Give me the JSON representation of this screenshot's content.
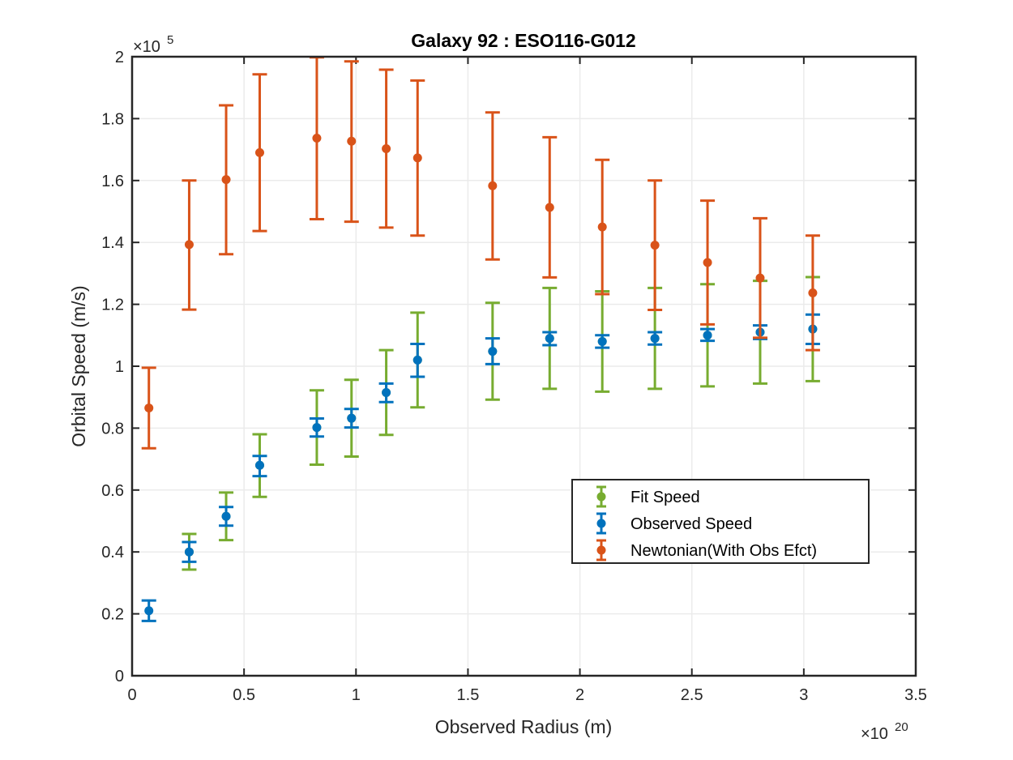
{
  "chart_data": {
    "type": "scatter",
    "title": "Galaxy 92 : ESO116-G012",
    "xlabel": "Observed Radius (m)",
    "ylabel": "Orbital Speed (m/s)",
    "x_multiplier": "×10",
    "x_exponent": "20",
    "y_multiplier": "×10",
    "y_exponent": "5",
    "xlim": [
      0,
      3.5
    ],
    "ylim": [
      0,
      2
    ],
    "x_ticks": [
      0,
      0.5,
      1,
      1.5,
      2,
      2.5,
      3,
      3.5
    ],
    "x_tick_labels": [
      "0",
      "0.5",
      "1",
      "1.5",
      "2",
      "2.5",
      "3",
      "3.5"
    ],
    "y_ticks": [
      0,
      0.2,
      0.4,
      0.6,
      0.8,
      1,
      1.2,
      1.4,
      1.6,
      1.8,
      2
    ],
    "y_tick_labels": [
      "0",
      "0.2",
      "0.4",
      "0.6",
      "0.8",
      "1",
      "1.2",
      "1.4",
      "1.6",
      "1.8",
      "2"
    ],
    "grid": true,
    "legend_position": "middle-right",
    "series": [
      {
        "name": "Fit Speed",
        "color": "#77ac30",
        "points": [
          {
            "x": 0.255,
            "y": 0.4,
            "lo": 0.343,
            "hi": 0.458
          },
          {
            "x": 0.42,
            "y": 0.515,
            "lo": 0.438,
            "hi": 0.592
          },
          {
            "x": 0.57,
            "y": 0.68,
            "lo": 0.578,
            "hi": 0.78
          },
          {
            "x": 0.825,
            "y": 0.802,
            "lo": 0.682,
            "hi": 0.922
          },
          {
            "x": 0.98,
            "y": 0.832,
            "lo": 0.708,
            "hi": 0.956
          },
          {
            "x": 1.135,
            "y": 0.915,
            "lo": 0.778,
            "hi": 1.052
          },
          {
            "x": 1.275,
            "y": 1.02,
            "lo": 0.867,
            "hi": 1.173
          },
          {
            "x": 1.61,
            "y": 1.048,
            "lo": 0.892,
            "hi": 1.205
          },
          {
            "x": 1.865,
            "y": 1.09,
            "lo": 0.927,
            "hi": 1.253
          },
          {
            "x": 2.1,
            "y": 1.08,
            "lo": 0.918,
            "hi": 1.242
          },
          {
            "x": 2.335,
            "y": 1.09,
            "lo": 0.927,
            "hi": 1.253
          },
          {
            "x": 2.57,
            "y": 1.1,
            "lo": 0.935,
            "hi": 1.265
          },
          {
            "x": 2.805,
            "y": 1.11,
            "lo": 0.944,
            "hi": 1.276
          },
          {
            "x": 3.04,
            "y": 1.12,
            "lo": 0.952,
            "hi": 1.288
          }
        ]
      },
      {
        "name": "Observed Speed",
        "color": "#0072bd",
        "points": [
          {
            "x": 0.075,
            "y": 0.21,
            "lo": 0.177,
            "hi": 0.243
          },
          {
            "x": 0.255,
            "y": 0.4,
            "lo": 0.368,
            "hi": 0.432
          },
          {
            "x": 0.42,
            "y": 0.515,
            "lo": 0.485,
            "hi": 0.545
          },
          {
            "x": 0.57,
            "y": 0.68,
            "lo": 0.645,
            "hi": 0.71
          },
          {
            "x": 0.825,
            "y": 0.802,
            "lo": 0.773,
            "hi": 0.831
          },
          {
            "x": 0.98,
            "y": 0.832,
            "lo": 0.802,
            "hi": 0.862
          },
          {
            "x": 1.135,
            "y": 0.915,
            "lo": 0.884,
            "hi": 0.944
          },
          {
            "x": 1.275,
            "y": 1.02,
            "lo": 0.966,
            "hi": 1.072
          },
          {
            "x": 1.61,
            "y": 1.048,
            "lo": 1.007,
            "hi": 1.09
          },
          {
            "x": 1.865,
            "y": 1.09,
            "lo": 1.068,
            "hi": 1.11
          },
          {
            "x": 2.1,
            "y": 1.08,
            "lo": 1.06,
            "hi": 1.1
          },
          {
            "x": 2.335,
            "y": 1.09,
            "lo": 1.07,
            "hi": 1.11
          },
          {
            "x": 2.57,
            "y": 1.1,
            "lo": 1.082,
            "hi": 1.12
          },
          {
            "x": 2.805,
            "y": 1.11,
            "lo": 1.088,
            "hi": 1.132
          },
          {
            "x": 3.04,
            "y": 1.12,
            "lo": 1.072,
            "hi": 1.167
          }
        ]
      },
      {
        "name": "Newtonian(With Obs Efct)",
        "color": "#d95319",
        "points": [
          {
            "x": 0.075,
            "y": 0.865,
            "lo": 0.735,
            "hi": 0.995
          },
          {
            "x": 0.255,
            "y": 1.393,
            "lo": 1.183,
            "hi": 1.6
          },
          {
            "x": 0.42,
            "y": 1.603,
            "lo": 1.362,
            "hi": 1.843
          },
          {
            "x": 0.57,
            "y": 1.69,
            "lo": 1.437,
            "hi": 1.943
          },
          {
            "x": 0.825,
            "y": 1.737,
            "lo": 1.475,
            "hi": 1.998
          },
          {
            "x": 0.98,
            "y": 1.727,
            "lo": 1.467,
            "hi": 1.985
          },
          {
            "x": 1.135,
            "y": 1.703,
            "lo": 1.448,
            "hi": 1.958
          },
          {
            "x": 1.275,
            "y": 1.673,
            "lo": 1.422,
            "hi": 1.923
          },
          {
            "x": 1.61,
            "y": 1.583,
            "lo": 1.345,
            "hi": 1.82
          },
          {
            "x": 1.865,
            "y": 1.513,
            "lo": 1.287,
            "hi": 1.74
          },
          {
            "x": 2.1,
            "y": 1.45,
            "lo": 1.233,
            "hi": 1.667
          },
          {
            "x": 2.335,
            "y": 1.391,
            "lo": 1.182,
            "hi": 1.6
          },
          {
            "x": 2.57,
            "y": 1.335,
            "lo": 1.135,
            "hi": 1.535
          },
          {
            "x": 2.805,
            "y": 1.285,
            "lo": 1.092,
            "hi": 1.478
          },
          {
            "x": 3.04,
            "y": 1.237,
            "lo": 1.052,
            "hi": 1.422
          }
        ]
      }
    ],
    "legend_order": [
      0,
      1,
      2
    ]
  }
}
